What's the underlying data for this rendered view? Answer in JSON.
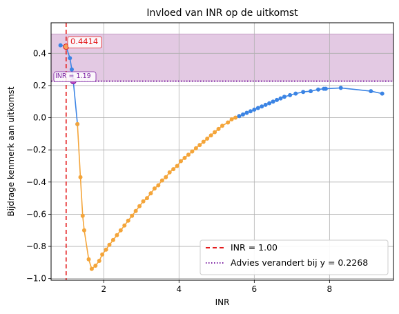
{
  "chart_data": {
    "type": "line",
    "title": "Invloed van INR op de uitkomst",
    "xlabel": "INR",
    "ylabel": "Bijdrage kenmerk aan uitkomst",
    "xlim": [
      0.6,
      9.7
    ],
    "ylim": [
      -1.01,
      0.59
    ],
    "x_ticks": [
      2,
      4,
      6,
      8
    ],
    "y_ticks": [
      -1.0,
      -0.8,
      -0.6,
      -0.4,
      -0.2,
      0.0,
      0.2,
      0.4
    ],
    "y_tick_labels": [
      "−1.0",
      "−0.8",
      "−0.6",
      "−0.4",
      "−0.2",
      "0.0",
      "0.2",
      "0.4"
    ],
    "grid": true,
    "shaded_band": {
      "y_from": 0.2268,
      "y_to": 0.52,
      "color": "#e3c9e3"
    },
    "reference_lines": [
      {
        "axis": "x",
        "value": 1.0,
        "label": "INR = 1.00",
        "color": "#e41a1c",
        "style": "dashed"
      },
      {
        "axis": "y",
        "value": 0.2268,
        "label": "Advies verandert bij y = 0.2268",
        "color": "#7b1fa2",
        "style": "dotted"
      }
    ],
    "annotations": [
      {
        "text": "0.4414",
        "x": 1.0,
        "y": 0.4414,
        "color": "#e41a1c"
      },
      {
        "text": "INR = 1.19",
        "x": 1.19,
        "y": 0.2268,
        "color": "#7b1fa2"
      }
    ],
    "legend": {
      "position": "bottom-right"
    },
    "series": [
      {
        "color": "#3b84e4",
        "points": [
          [
            0.85,
            0.45
          ],
          [
            1.0,
            0.4414
          ],
          [
            1.1,
            0.37
          ],
          [
            1.15,
            0.3
          ],
          [
            1.19,
            0.2268
          ],
          [
            1.3,
            -0.04
          ]
        ]
      },
      {
        "color": "#f4a53a",
        "points": [
          [
            1.3,
            -0.04
          ],
          [
            1.38,
            -0.37
          ],
          [
            1.44,
            -0.61
          ],
          [
            1.48,
            -0.7
          ],
          [
            1.6,
            -0.88
          ],
          [
            1.68,
            -0.94
          ],
          [
            1.78,
            -0.92
          ],
          [
            1.88,
            -0.89
          ],
          [
            1.96,
            -0.85
          ],
          [
            2.06,
            -0.82
          ],
          [
            2.15,
            -0.79
          ],
          [
            2.25,
            -0.76
          ],
          [
            2.35,
            -0.73
          ],
          [
            2.45,
            -0.7
          ],
          [
            2.55,
            -0.67
          ],
          [
            2.65,
            -0.64
          ],
          [
            2.75,
            -0.61
          ],
          [
            2.85,
            -0.58
          ],
          [
            2.95,
            -0.55
          ],
          [
            3.05,
            -0.52
          ],
          [
            3.15,
            -0.5
          ],
          [
            3.25,
            -0.47
          ],
          [
            3.35,
            -0.44
          ],
          [
            3.45,
            -0.42
          ],
          [
            3.55,
            -0.39
          ],
          [
            3.65,
            -0.37
          ],
          [
            3.75,
            -0.34
          ],
          [
            3.85,
            -0.32
          ],
          [
            3.95,
            -0.3
          ],
          [
            4.05,
            -0.27
          ],
          [
            4.15,
            -0.25
          ],
          [
            4.25,
            -0.23
          ],
          [
            4.35,
            -0.21
          ],
          [
            4.45,
            -0.19
          ],
          [
            4.55,
            -0.17
          ],
          [
            4.65,
            -0.15
          ],
          [
            4.75,
            -0.13
          ],
          [
            4.85,
            -0.11
          ],
          [
            4.95,
            -0.09
          ],
          [
            5.05,
            -0.07
          ],
          [
            5.15,
            -0.05
          ],
          [
            5.3,
            -0.03
          ],
          [
            5.4,
            -0.01
          ],
          [
            5.5,
            0.0
          ],
          [
            5.6,
            0.01
          ]
        ]
      },
      {
        "color": "#3b84e4",
        "points": [
          [
            5.6,
            0.01
          ],
          [
            5.7,
            0.02
          ],
          [
            5.8,
            0.03
          ],
          [
            5.9,
            0.04
          ],
          [
            6.0,
            0.05
          ],
          [
            6.1,
            0.06
          ],
          [
            6.2,
            0.07
          ],
          [
            6.3,
            0.08
          ],
          [
            6.4,
            0.09
          ],
          [
            6.5,
            0.1
          ],
          [
            6.6,
            0.11
          ],
          [
            6.7,
            0.12
          ],
          [
            6.8,
            0.13
          ],
          [
            6.95,
            0.14
          ],
          [
            7.1,
            0.15
          ],
          [
            7.3,
            0.16
          ],
          [
            7.5,
            0.165
          ],
          [
            7.7,
            0.175
          ],
          [
            7.85,
            0.18
          ],
          [
            7.9,
            0.18
          ],
          [
            8.3,
            0.185
          ],
          [
            9.1,
            0.165
          ],
          [
            9.4,
            0.15
          ]
        ]
      }
    ]
  }
}
